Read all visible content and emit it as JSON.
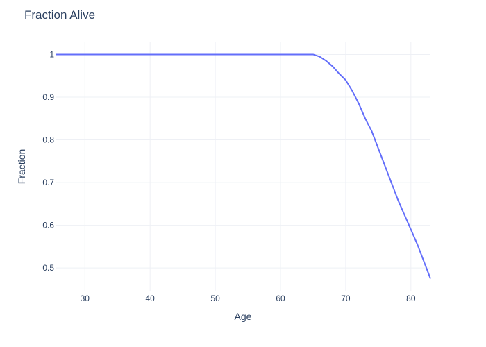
{
  "chart_data": {
    "type": "line",
    "title": "Fraction Alive",
    "xlabel": "Age",
    "ylabel": "Fraction",
    "xlim": [
      25.5,
      83
    ],
    "ylim": [
      0.445,
      1.03
    ],
    "xticks": [
      30,
      40,
      50,
      60,
      70,
      80
    ],
    "yticks": [
      0.5,
      0.6,
      0.7,
      0.8,
      0.9,
      1
    ],
    "ytick_labels": [
      "0.5",
      "0.6",
      "0.7",
      "0.8",
      "0.9",
      "1"
    ],
    "xtick_labels": [
      "30",
      "40",
      "50",
      "60",
      "70",
      "80"
    ],
    "grid": true,
    "series": [
      {
        "color": "#636efa",
        "x": [
          25.5,
          30,
          35,
          40,
          45,
          50,
          55,
          60,
          64,
          65,
          66,
          67,
          68,
          69,
          70,
          71,
          72,
          73,
          74,
          75,
          76,
          77,
          78,
          79,
          80,
          81,
          82,
          83
        ],
        "y": [
          1,
          1,
          1,
          1,
          1,
          1,
          1,
          1,
          1,
          1,
          0.995,
          0.985,
          0.972,
          0.955,
          0.94,
          0.915,
          0.885,
          0.85,
          0.82,
          0.78,
          0.74,
          0.7,
          0.66,
          0.625,
          0.59,
          0.555,
          0.515,
          0.475
        ]
      }
    ]
  }
}
